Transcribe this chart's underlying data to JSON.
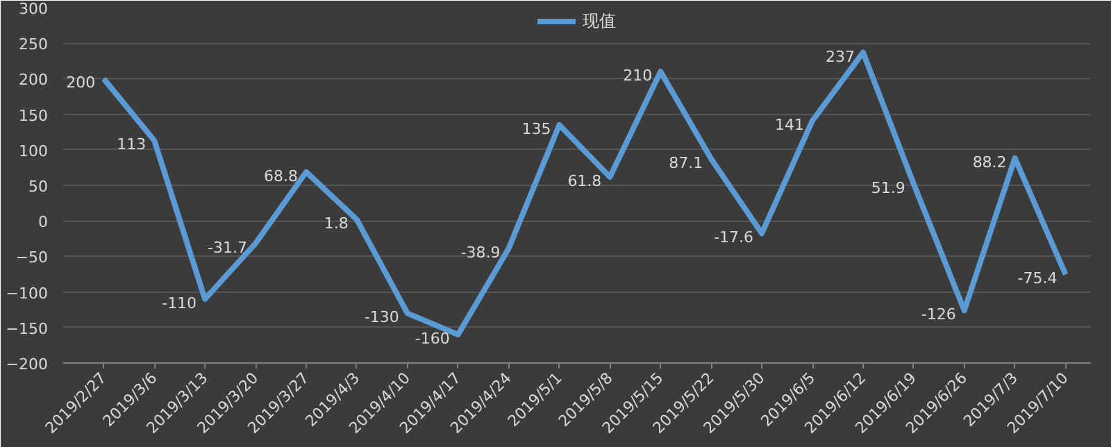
{
  "chart_data": {
    "type": "line",
    "categories": [
      "2019/2/27",
      "2019/3/6",
      "2019/3/13",
      "2019/3/20",
      "2019/3/27",
      "2019/4/3",
      "2019/4/10",
      "2019/4/17",
      "2019/4/24",
      "2019/5/1",
      "2019/5/8",
      "2019/5/15",
      "2019/5/22",
      "2019/5/30",
      "2019/6/5",
      "2019/6/12",
      "2019/6/19",
      "2019/6/26",
      "2019/7/3",
      "2019/7/10"
    ],
    "series": [
      {
        "name": "现值",
        "color": "#5b9bd5",
        "values": [
          200,
          113,
          -110,
          -31.7,
          68.8,
          1.8,
          -130,
          -160,
          -38.9,
          135,
          61.8,
          210,
          87.1,
          -17.6,
          141,
          237,
          51.9,
          -126,
          88.2,
          -75.4
        ]
      }
    ],
    "ylim": [
      -200,
      300
    ],
    "yticks": [
      -200,
      -150,
      -100,
      -50,
      0,
      50,
      100,
      150,
      200,
      250,
      300
    ],
    "grid": "y",
    "legend": "top",
    "data_labels": true,
    "marker": "none",
    "line_style": "solid"
  }
}
